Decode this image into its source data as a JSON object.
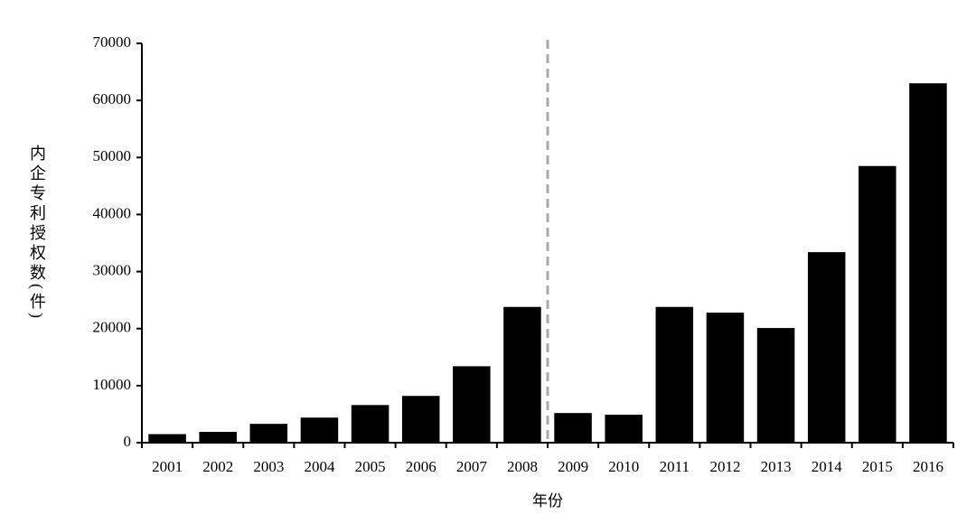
{
  "chart_data": {
    "type": "bar",
    "x_label": "年份",
    "y_label": "内企专利授权数(件)",
    "categories": [
      "2001",
      "2002",
      "2003",
      "2004",
      "2005",
      "2006",
      "2007",
      "2008",
      "2009",
      "2010",
      "2011",
      "2012",
      "2013",
      "2014",
      "2015",
      "2016"
    ],
    "values": [
      1500,
      1900,
      3300,
      4400,
      6600,
      8200,
      13400,
      23800,
      5200,
      4900,
      23800,
      22800,
      20100,
      33400,
      48500,
      63000
    ],
    "color": "#000000",
    "ylim": [
      0,
      70000
    ],
    "yticks": [
      0,
      10000,
      20000,
      30000,
      40000,
      50000,
      60000,
      70000
    ],
    "grid": false
  }
}
